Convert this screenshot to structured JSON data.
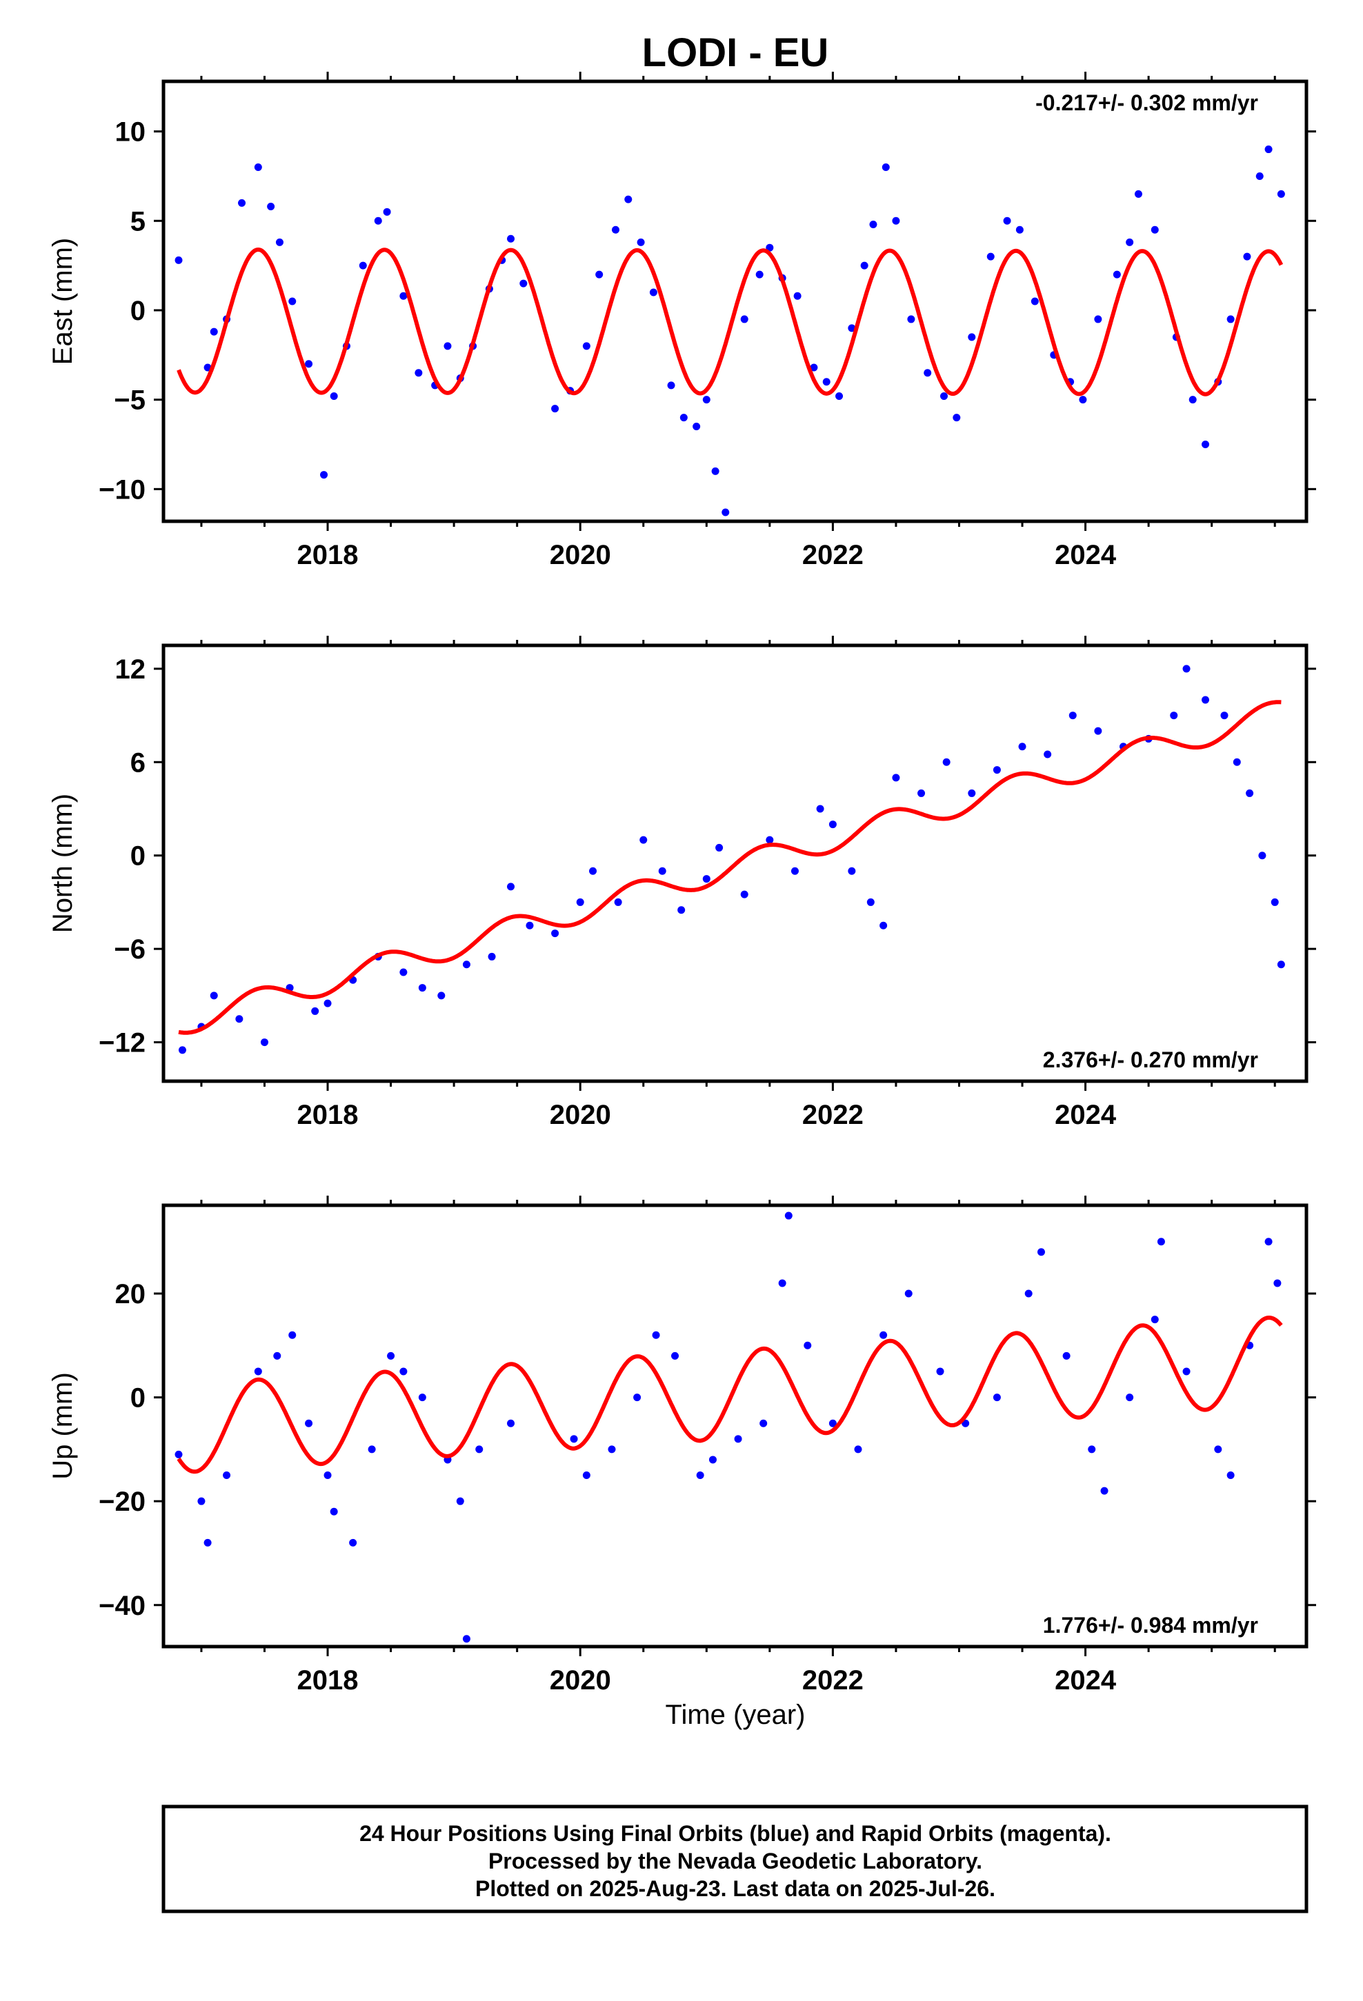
{
  "title": "LODI - EU",
  "xlabel": "Time (year)",
  "footer": {
    "line1": "24 Hour Positions Using Final Orbits (blue) and Rapid Orbits (magenta).",
    "line2": "Processed by the Nevada Geodetic Laboratory.",
    "line3": "Plotted on 2025-Aug-23. Last data on 2025-Jul-26."
  },
  "colors": {
    "points": "#0000ff",
    "model": "#ff0000",
    "frame": "#000000"
  },
  "chart_data": [
    {
      "type": "scatter",
      "ylabel": "East (mm)",
      "rate": "-0.217+/- 0.302 mm/yr",
      "rate_position": "top-right",
      "xlim": [
        2016.7,
        2025.75
      ],
      "ylim": [
        -11.8,
        12.8
      ],
      "xticks": [
        2018,
        2020,
        2022,
        2024
      ],
      "xtick_labels": [
        "2018",
        "2020",
        "2022",
        "2024"
      ],
      "yticks": [
        -10,
        -5,
        0,
        5,
        10
      ],
      "ytick_labels": [
        "−10",
        "−5",
        "0",
        "5",
        "10"
      ],
      "series": [
        {
          "kind": "points",
          "x": [
            2016.82,
            2017.05,
            2017.1,
            2017.2,
            2017.32,
            2017.45,
            2017.55,
            2017.62,
            2017.72,
            2017.85,
            2017.97,
            2018.05,
            2018.15,
            2018.28,
            2018.4,
            2018.47,
            2018.6,
            2018.72,
            2018.85,
            2018.95,
            2019.05,
            2019.15,
            2019.28,
            2019.38,
            2019.45,
            2019.55,
            2019.8,
            2019.92,
            2020.05,
            2020.15,
            2020.28,
            2020.38,
            2020.48,
            2020.58,
            2020.72,
            2020.82,
            2020.92,
            2021.0,
            2021.07,
            2021.15,
            2021.3,
            2021.42,
            2021.5,
            2021.6,
            2021.72,
            2021.85,
            2021.95,
            2022.05,
            2022.15,
            2022.25,
            2022.32,
            2022.42,
            2022.5,
            2022.62,
            2022.75,
            2022.88,
            2022.98,
            2023.1,
            2023.25,
            2023.38,
            2023.48,
            2023.6,
            2023.75,
            2023.88,
            2023.98,
            2024.1,
            2024.25,
            2024.35,
            2024.42,
            2024.55,
            2024.72,
            2024.85,
            2024.95,
            2025.05,
            2025.15,
            2025.28,
            2025.38,
            2025.45,
            2025.55
          ],
          "y": [
            2.8,
            -3.2,
            -1.2,
            -0.5,
            6.0,
            8.0,
            5.8,
            3.8,
            0.5,
            -3.0,
            -9.2,
            -4.8,
            -2.0,
            2.5,
            5.0,
            5.5,
            0.8,
            -3.5,
            -4.2,
            -2.0,
            -3.8,
            -2.0,
            1.2,
            2.8,
            4.0,
            1.5,
            -5.5,
            -4.5,
            -2.0,
            2.0,
            4.5,
            6.2,
            3.8,
            1.0,
            -4.2,
            -6.0,
            -6.5,
            -5.0,
            -9.0,
            -11.3,
            -0.5,
            2.0,
            3.5,
            1.8,
            0.8,
            -3.2,
            -4.0,
            -4.8,
            -1.0,
            2.5,
            4.8,
            8.0,
            5.0,
            -0.5,
            -3.5,
            -4.8,
            -6.0,
            -1.5,
            3.0,
            5.0,
            4.5,
            0.5,
            -2.5,
            -4.0,
            -5.0,
            -0.5,
            2.0,
            3.8,
            6.5,
            4.5,
            -1.5,
            -5.0,
            -7.5,
            -4.0,
            -0.5,
            3.0,
            7.5,
            9.0,
            6.5
          ]
        },
        {
          "kind": "model",
          "amplitude": 4.0,
          "trend_start": -0.6,
          "trend_end": -0.7
        }
      ]
    },
    {
      "type": "scatter",
      "ylabel": "North (mm)",
      "rate": "2.376+/- 0.270 mm/yr",
      "rate_position": "bottom-right",
      "xlim": [
        2016.7,
        2025.75
      ],
      "ylim": [
        -14.5,
        13.5
      ],
      "xticks": [
        2018,
        2020,
        2022,
        2024
      ],
      "xtick_labels": [
        "2018",
        "2020",
        "2022",
        "2024"
      ],
      "yticks": [
        -12,
        -6,
        0,
        6,
        12
      ],
      "ytick_labels": [
        "−12",
        "−6",
        "0",
        "6",
        "12"
      ],
      "series": [
        {
          "kind": "points",
          "x": [
            2016.85,
            2017.0,
            2017.1,
            2017.3,
            2017.5,
            2017.7,
            2017.9,
            2018.0,
            2018.2,
            2018.4,
            2018.6,
            2018.75,
            2018.9,
            2019.1,
            2019.3,
            2019.45,
            2019.6,
            2019.8,
            2020.0,
            2020.1,
            2020.3,
            2020.5,
            2020.65,
            2020.8,
            2021.0,
            2021.1,
            2021.3,
            2021.5,
            2021.7,
            2021.9,
            2022.0,
            2022.15,
            2022.3,
            2022.4,
            2022.5,
            2022.7,
            2022.9,
            2023.1,
            2023.3,
            2023.5,
            2023.7,
            2023.9,
            2024.1,
            2024.3,
            2024.5,
            2024.7,
            2024.8,
            2024.95,
            2025.1,
            2025.2,
            2025.3,
            2025.4,
            2025.5,
            2025.55
          ],
          "y": [
            -12.5,
            -11.0,
            -9.0,
            -10.5,
            -12.0,
            -8.5,
            -10.0,
            -9.5,
            -8.0,
            -6.5,
            -7.5,
            -8.5,
            -9.0,
            -7.0,
            -6.5,
            -2.0,
            -4.5,
            -5.0,
            -3.0,
            -1.0,
            -3.0,
            1.0,
            -1.0,
            -3.5,
            -1.5,
            0.5,
            -2.5,
            1.0,
            -1.0,
            3.0,
            2.0,
            -1.0,
            -3.0,
            -4.5,
            5.0,
            4.0,
            6.0,
            4.0,
            5.5,
            7.0,
            6.5,
            9.0,
            8.0,
            7.0,
            7.5,
            9.0,
            12.0,
            10.0,
            9.0,
            6.0,
            4.0,
            0.0,
            -3.0,
            -7.0
          ]
        },
        {
          "kind": "model",
          "amplitude": 0.8,
          "trend_start": -10.8,
          "trend_end": 9.2
        }
      ]
    },
    {
      "type": "scatter",
      "ylabel": "Up (mm)",
      "rate": "1.776+/- 0.984 mm/yr",
      "rate_position": "bottom-right",
      "xlim": [
        2016.7,
        2025.75
      ],
      "ylim": [
        -48,
        37
      ],
      "xticks": [
        2018,
        2020,
        2022,
        2024
      ],
      "xtick_labels": [
        "2018",
        "2020",
        "2022",
        "2024"
      ],
      "yticks": [
        -40,
        -20,
        0,
        20
      ],
      "ytick_labels": [
        "−40",
        "−20",
        "0",
        "20"
      ],
      "series": [
        {
          "kind": "points",
          "x": [
            2016.82,
            2017.0,
            2017.05,
            2017.2,
            2017.45,
            2017.6,
            2017.72,
            2017.85,
            2018.0,
            2018.05,
            2018.2,
            2018.35,
            2018.5,
            2018.6,
            2018.75,
            2018.95,
            2019.05,
            2019.1,
            2019.2,
            2019.45,
            2019.95,
            2020.05,
            2020.25,
            2020.45,
            2020.6,
            2020.75,
            2020.95,
            2021.05,
            2021.25,
            2021.45,
            2021.6,
            2021.65,
            2021.8,
            2022.0,
            2022.2,
            2022.4,
            2022.6,
            2022.85,
            2023.05,
            2023.3,
            2023.55,
            2023.65,
            2023.85,
            2024.05,
            2024.15,
            2024.35,
            2024.55,
            2024.6,
            2024.8,
            2025.05,
            2025.15,
            2025.3,
            2025.45,
            2025.52
          ],
          "y": [
            -11.0,
            -20.0,
            -28.0,
            -15.0,
            5.0,
            8.0,
            12.0,
            -5.0,
            -15.0,
            -22.0,
            -28.0,
            -10.0,
            8.0,
            5.0,
            0.0,
            -12.0,
            -20.0,
            -46.5,
            -10.0,
            -5.0,
            -8.0,
            -15.0,
            -10.0,
            0.0,
            12.0,
            8.0,
            -15.0,
            -12.0,
            -8.0,
            -5.0,
            22.0,
            35.0,
            10.0,
            -5.0,
            -10.0,
            12.0,
            20.0,
            5.0,
            -5.0,
            0.0,
            20.0,
            28.0,
            8.0,
            -10.0,
            -18.0,
            0.0,
            15.0,
            30.0,
            5.0,
            -10.0,
            -15.0,
            10.0,
            30.0,
            22.0
          ]
        },
        {
          "kind": "model",
          "amplitude": 8.5,
          "trend_start": -6.0,
          "trend_end": 7.0
        }
      ]
    }
  ]
}
